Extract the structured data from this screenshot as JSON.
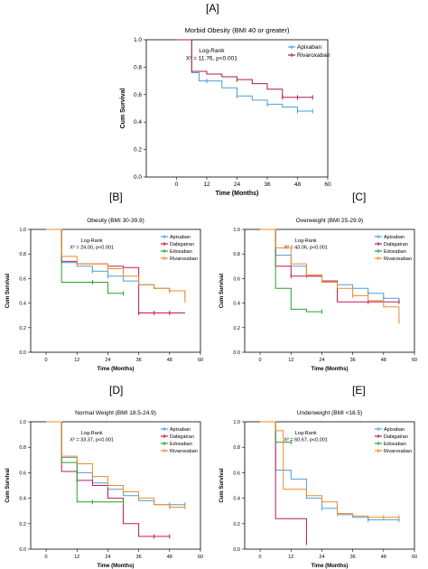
{
  "figure": {
    "letters": {
      "A": "[A]",
      "B": "[B]",
      "C": "[C]",
      "D": "[D]",
      "E": "[E]"
    }
  },
  "chart_data": [
    {
      "id": "A",
      "type": "line",
      "title": "Morbid Obesity (BMI 40 or greater)",
      "xlabel": "Time (Months)",
      "ylabel": "Cum Survival",
      "xlim": [
        -12,
        60
      ],
      "ylim": [
        0,
        1
      ],
      "xticks": [
        "0",
        "12",
        "24",
        "36",
        "48",
        "60"
      ],
      "yticks": [
        "0.0",
        "0.2",
        "0.4",
        "0.6",
        "0.8",
        "1.0"
      ],
      "annotation": [
        "Log-Rank",
        "X² = 11.76, p<0.001"
      ],
      "legend_position": "top-right",
      "series": [
        {
          "name": "Apixaban",
          "color": "#4b9fd8",
          "steps": [
            [
              0,
              1.0
            ],
            [
              6,
              0.76
            ],
            [
              9,
              0.7
            ],
            [
              18,
              0.65
            ],
            [
              24,
              0.59
            ],
            [
              30,
              0.56
            ],
            [
              36,
              0.53
            ],
            [
              42,
              0.51
            ],
            [
              48,
              0.48
            ],
            [
              54,
              0.48
            ]
          ],
          "censored": [
            [
              12,
              0.7
            ],
            [
              24,
              0.59
            ],
            [
              36,
              0.53
            ],
            [
              48,
              0.48
            ],
            [
              54,
              0.48
            ]
          ]
        },
        {
          "name": "Rivaroxaban",
          "color": "#b0174f",
          "steps": [
            [
              0,
              1.0
            ],
            [
              6,
              0.77
            ],
            [
              12,
              0.75
            ],
            [
              18,
              0.73
            ],
            [
              24,
              0.71
            ],
            [
              30,
              0.68
            ],
            [
              36,
              0.64
            ],
            [
              42,
              0.58
            ],
            [
              54,
              0.58
            ]
          ],
          "censored": [
            [
              24,
              0.71
            ],
            [
              42,
              0.58
            ],
            [
              48,
              0.58
            ],
            [
              54,
              0.58
            ]
          ]
        }
      ]
    },
    {
      "id": "B",
      "type": "line",
      "title": "Obesity (BMI 30-39.9)",
      "xlabel": "Time (Months)",
      "ylabel": "Cum Survival",
      "xlim": [
        -6,
        60
      ],
      "ylim": [
        0,
        1
      ],
      "xticks": [
        "0",
        "12",
        "24",
        "36",
        "48",
        "60"
      ],
      "yticks": [
        "0.0",
        "0.2",
        "0.4",
        "0.6",
        "0.8",
        "1.0"
      ],
      "annotation": [
        "Log-Rank",
        "X² = 24.00, p<0.001"
      ],
      "legend_position": "top-right",
      "series": [
        {
          "name": "Apixaban",
          "color": "#4b9fd8",
          "steps": [
            [
              0,
              1.0
            ],
            [
              6,
              0.73
            ],
            [
              12,
              0.7
            ],
            [
              18,
              0.66
            ],
            [
              24,
              0.62
            ],
            [
              30,
              0.58
            ],
            [
              36,
              0.55
            ],
            [
              42,
              0.52
            ],
            [
              48,
              0.5
            ],
            [
              54,
              0.46
            ]
          ],
          "censored": [
            [
              18,
              0.66
            ],
            [
              24,
              0.62
            ],
            [
              48,
              0.5
            ],
            [
              54,
              0.46
            ]
          ]
        },
        {
          "name": "Dabigatran",
          "color": "#c0185a",
          "steps": [
            [
              0,
              1.0
            ],
            [
              6,
              0.74
            ],
            [
              12,
              0.72
            ],
            [
              24,
              0.7
            ],
            [
              30,
              0.69
            ],
            [
              36,
              0.32
            ],
            [
              54,
              0.32
            ]
          ],
          "censored": [
            [
              24,
              0.7
            ],
            [
              36,
              0.32
            ],
            [
              42,
              0.32
            ],
            [
              48,
              0.32
            ]
          ]
        },
        {
          "name": "Edoxaban",
          "color": "#2ca02c",
          "steps": [
            [
              0,
              1.0
            ],
            [
              6,
              0.57
            ],
            [
              18,
              0.57
            ],
            [
              24,
              0.48
            ],
            [
              30,
              0.48
            ]
          ],
          "censored": [
            [
              18,
              0.57
            ],
            [
              30,
              0.48
            ]
          ]
        },
        {
          "name": "Rivaroxaban",
          "color": "#f08a24",
          "steps": [
            [
              0,
              1.0
            ],
            [
              6,
              0.78
            ],
            [
              12,
              0.72
            ],
            [
              24,
              0.68
            ],
            [
              30,
              0.62
            ],
            [
              36,
              0.55
            ],
            [
              42,
              0.52
            ],
            [
              48,
              0.5
            ],
            [
              54,
              0.42
            ]
          ],
          "censored": [
            [
              24,
              0.68
            ],
            [
              48,
              0.5
            ],
            [
              54,
              0.42
            ]
          ]
        }
      ]
    },
    {
      "id": "C",
      "type": "line",
      "title": "Overweight  (BMI 25-29.9)",
      "xlabel": "Time (Months)",
      "ylabel": "Cum Survival",
      "xlim": [
        -6,
        60
      ],
      "ylim": [
        0,
        1
      ],
      "xticks": [
        "0",
        "12",
        "24",
        "36",
        "48",
        "60"
      ],
      "yticks": [
        "0.0",
        "0.2",
        "0.4",
        "0.6",
        "0.8",
        "1.0"
      ],
      "annotation": [
        "Log-Rank",
        "X² = 43.06, p<0.001"
      ],
      "legend_position": "top-right",
      "series": [
        {
          "name": "Apixaban",
          "color": "#4b9fd8",
          "steps": [
            [
              0,
              1.0
            ],
            [
              6,
              0.79
            ],
            [
              12,
              0.7
            ],
            [
              18,
              0.62
            ],
            [
              24,
              0.58
            ],
            [
              30,
              0.55
            ],
            [
              36,
              0.52
            ],
            [
              42,
              0.48
            ],
            [
              48,
              0.44
            ],
            [
              54,
              0.4
            ]
          ],
          "censored": [
            [
              18,
              0.62
            ],
            [
              30,
              0.55
            ],
            [
              42,
              0.48
            ],
            [
              48,
              0.44
            ]
          ]
        },
        {
          "name": "Dabigatran",
          "color": "#c0185a",
          "steps": [
            [
              0,
              1.0
            ],
            [
              6,
              0.7
            ],
            [
              12,
              0.62
            ],
            [
              24,
              0.58
            ],
            [
              30,
              0.41
            ],
            [
              54,
              0.41
            ]
          ],
          "censored": [
            [
              12,
              0.62
            ],
            [
              42,
              0.41
            ],
            [
              54,
              0.41
            ]
          ]
        },
        {
          "name": "Edoxaban",
          "color": "#2ca02c",
          "steps": [
            [
              0,
              1.0
            ],
            [
              6,
              0.52
            ],
            [
              12,
              0.35
            ],
            [
              18,
              0.33
            ],
            [
              24,
              0.33
            ]
          ],
          "censored": [
            [
              24,
              0.33
            ]
          ]
        },
        {
          "name": "Rivaroxaban",
          "color": "#f08a24",
          "steps": [
            [
              0,
              1.0
            ],
            [
              6,
              0.85
            ],
            [
              12,
              0.72
            ],
            [
              18,
              0.63
            ],
            [
              24,
              0.57
            ],
            [
              30,
              0.52
            ],
            [
              36,
              0.46
            ],
            [
              42,
              0.42
            ],
            [
              48,
              0.37
            ],
            [
              54,
              0.25
            ]
          ],
          "censored": [
            [
              18,
              0.63
            ],
            [
              36,
              0.46
            ],
            [
              54,
              0.25
            ]
          ]
        }
      ]
    },
    {
      "id": "D",
      "type": "line",
      "title": "Normal Weight  (BMI 18.5-24.9)",
      "xlabel": "Time (Months)",
      "ylabel": "Cum Survival",
      "xlim": [
        -6,
        60
      ],
      "ylim": [
        0,
        1
      ],
      "xticks": [
        "0",
        "12",
        "24",
        "36",
        "48",
        "60"
      ],
      "yticks": [
        "0.0",
        "0.2",
        "0.4",
        "0.6",
        "0.8",
        "1.0"
      ],
      "annotation": [
        "Log-Rank",
        "X² = 33.37, p<0.001"
      ],
      "legend_position": "top-right",
      "series": [
        {
          "name": "Apixaban",
          "color": "#4b9fd8",
          "steps": [
            [
              0,
              1.0
            ],
            [
              6,
              0.72
            ],
            [
              12,
              0.6
            ],
            [
              18,
              0.52
            ],
            [
              24,
              0.47
            ],
            [
              30,
              0.42
            ],
            [
              36,
              0.38
            ],
            [
              42,
              0.35
            ],
            [
              54,
              0.35
            ]
          ],
          "censored": [
            [
              12,
              0.6
            ],
            [
              24,
              0.47
            ],
            [
              48,
              0.35
            ],
            [
              54,
              0.35
            ]
          ]
        },
        {
          "name": "Dabigatran",
          "color": "#c0185a",
          "steps": [
            [
              0,
              1.0
            ],
            [
              6,
              0.61
            ],
            [
              12,
              0.54
            ],
            [
              18,
              0.5
            ],
            [
              24,
              0.4
            ],
            [
              30,
              0.2
            ],
            [
              36,
              0.1
            ],
            [
              48,
              0.1
            ]
          ],
          "censored": [
            [
              12,
              0.54
            ],
            [
              42,
              0.1
            ],
            [
              48,
              0.1
            ]
          ]
        },
        {
          "name": "Edoxaban",
          "color": "#2ca02c",
          "steps": [
            [
              0,
              1.0
            ],
            [
              6,
              0.68
            ],
            [
              12,
              0.37
            ],
            [
              30,
              0.37
            ]
          ],
          "censored": [
            [
              18,
              0.37
            ],
            [
              30,
              0.37
            ]
          ]
        },
        {
          "name": "Rivaroxaban",
          "color": "#f08a24",
          "steps": [
            [
              0,
              1.0
            ],
            [
              6,
              0.73
            ],
            [
              12,
              0.67
            ],
            [
              18,
              0.57
            ],
            [
              24,
              0.5
            ],
            [
              30,
              0.45
            ],
            [
              36,
              0.4
            ],
            [
              42,
              0.35
            ],
            [
              48,
              0.33
            ],
            [
              54,
              0.33
            ]
          ],
          "censored": [
            [
              24,
              0.5
            ],
            [
              48,
              0.33
            ],
            [
              54,
              0.33
            ]
          ]
        }
      ]
    },
    {
      "id": "E",
      "type": "line",
      "title": "Underweight  (BMI <18.5)",
      "xlabel": "Time (Months)",
      "ylabel": "Cum Survival",
      "xlim": [
        -6,
        60
      ],
      "ylim": [
        0,
        1
      ],
      "xticks": [
        "0",
        "12",
        "24",
        "36",
        "48",
        "60"
      ],
      "yticks": [
        "0.0",
        "0.2",
        "0.4",
        "0.6",
        "0.8",
        "1.0"
      ],
      "annotation": [
        "Log-Rank",
        "X² = 60.67, p<0.001"
      ],
      "legend_position": "top-right",
      "series": [
        {
          "name": "Apixaban",
          "color": "#4b9fd8",
          "steps": [
            [
              0,
              1.0
            ],
            [
              6,
              0.62
            ],
            [
              12,
              0.55
            ],
            [
              18,
              0.4
            ],
            [
              24,
              0.32
            ],
            [
              30,
              0.27
            ],
            [
              36,
              0.25
            ],
            [
              42,
              0.23
            ],
            [
              54,
              0.23
            ]
          ],
          "censored": [
            [
              24,
              0.32
            ],
            [
              42,
              0.23
            ],
            [
              54,
              0.23
            ]
          ]
        },
        {
          "name": "Dabigatran",
          "color": "#c0185a",
          "steps": [
            [
              0,
              1.0
            ],
            [
              6,
              0.24
            ],
            [
              18,
              0.05
            ]
          ],
          "censored": [
            [
              18,
              0.05
            ]
          ]
        },
        {
          "name": "Edoxaban",
          "color": "#2ca02c",
          "steps": [
            [
              0,
              1.0
            ],
            [
              6,
              0.84
            ],
            [
              12,
              0.84
            ]
          ],
          "censored": [
            [
              12,
              0.84
            ]
          ]
        },
        {
          "name": "Rivaroxaban",
          "color": "#f08a24",
          "steps": [
            [
              0,
              1.0
            ],
            [
              6,
              0.93
            ],
            [
              9,
              0.47
            ],
            [
              18,
              0.42
            ],
            [
              24,
              0.37
            ],
            [
              30,
              0.28
            ],
            [
              36,
              0.26
            ],
            [
              42,
              0.25
            ],
            [
              54,
              0.25
            ]
          ],
          "censored": [
            [
              30,
              0.28
            ],
            [
              48,
              0.25
            ],
            [
              54,
              0.25
            ]
          ]
        }
      ]
    }
  ]
}
